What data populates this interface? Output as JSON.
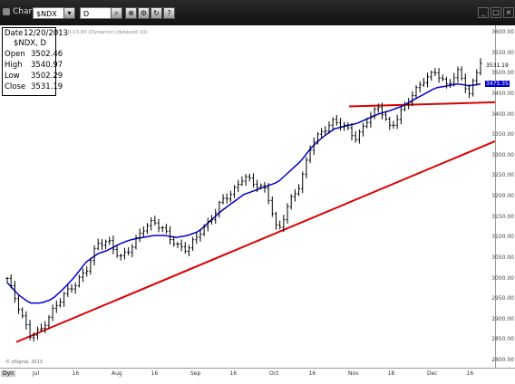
{
  "window": {
    "title": "Chart"
  },
  "toolbar": {
    "symbol": "$NDX",
    "period": "D"
  },
  "info": {
    "date_label": "Date",
    "date": "12/20/2013",
    "symbol": "$NDX, D",
    "open_label": "Open",
    "open": "3502.46",
    "high_label": "High",
    "high": "3540.97",
    "low_label": "Low",
    "low": "3502.29",
    "close_label": "Close",
    "close": "3531.19"
  },
  "description": "12-20-13:00 (Dynamic) (delayed 10)",
  "last_price": "3531.19",
  "ma_value": "3475.35",
  "copyright": "© eSignal, 2013",
  "x_labels": [
    "Jul",
    "16",
    "Aug",
    "16",
    "Sep",
    "16",
    "Oct",
    "16",
    "Nov",
    "18",
    "Dec",
    "16"
  ],
  "x_axis_label": "Dyn",
  "colors": {
    "price": "#000000",
    "ma": "#0000cc",
    "trendline": "#dd0000",
    "background": "#ffffff"
  },
  "chart_data": {
    "type": "line",
    "title": "$NDX, D",
    "ylim": [
      2800,
      3600
    ],
    "y_ticks": [
      2800,
      2850,
      2900,
      2950,
      3000,
      3050,
      3100,
      3150,
      3200,
      3250,
      3300,
      3350,
      3400,
      3450,
      3500,
      3550,
      3600
    ],
    "x_ticks": [
      "Jul",
      "16",
      "Aug",
      "16",
      "Sep",
      "16",
      "Oct",
      "16",
      "Nov",
      "18",
      "Dec",
      "16"
    ],
    "series": [
      {
        "values": [
          3000,
          2930,
          2860,
          2875,
          2920,
          2960,
          2985,
          3020,
          3085,
          3090,
          3050,
          3075,
          3120,
          3140,
          3115,
          3080,
          3070,
          3110,
          3140,
          3190,
          3210,
          3250,
          3230,
          3215,
          3110,
          3185,
          3230,
          3330,
          3360,
          3385,
          3370,
          3340,
          3390,
          3420,
          3365,
          3410,
          3450,
          3485,
          3505,
          3470,
          3505,
          3450,
          3531
        ]
      },
      {
        "values": [
          2990,
          2960,
          2940,
          2940,
          2950,
          2975,
          3005,
          3040,
          3060,
          3070,
          3085,
          3095,
          3100,
          3105,
          3105,
          3100,
          3105,
          3115,
          3140,
          3165,
          3185,
          3205,
          3215,
          3225,
          3235,
          3260,
          3285,
          3320,
          3345,
          3365,
          3372,
          3378,
          3390,
          3402,
          3410,
          3420,
          3435,
          3450,
          3465,
          3470,
          3475,
          3470,
          3475
        ]
      },
      {
        "values": [
          2845,
          3335
        ]
      },
      {
        "values": [
          3420,
          3430
        ]
      }
    ]
  }
}
